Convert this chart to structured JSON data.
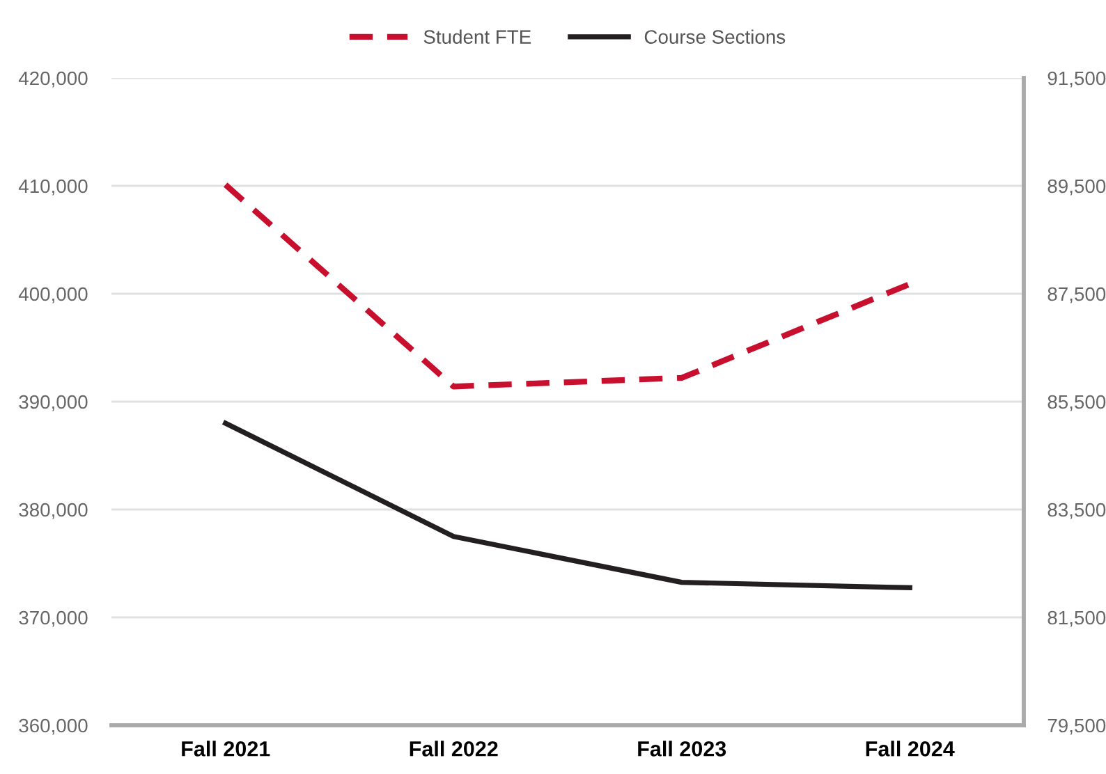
{
  "chart_data": {
    "type": "line",
    "categories": [
      "Fall 2021",
      "Fall 2022",
      "Fall 2023",
      "Fall 2024"
    ],
    "series": [
      {
        "name": "Student FTE",
        "color": "#c8102e",
        "line_style": "dashed",
        "values": [
          410100,
          391400,
          392200,
          400900
        ]
      },
      {
        "name": "Course Sections",
        "color": "#231f20",
        "line_style": "solid",
        "axis": "y2",
        "values": [
          85100,
          83000,
          82150,
          82050
        ]
      }
    ],
    "ylim": [
      360000,
      420000
    ],
    "yticks": [
      {
        "value": 360000,
        "label": "360,000"
      },
      {
        "value": 370000,
        "label": "370,000"
      },
      {
        "value": 380000,
        "label": "380,000"
      },
      {
        "value": 390000,
        "label": "390,000"
      },
      {
        "value": 400000,
        "label": "400,000"
      },
      {
        "value": 410000,
        "label": "410,000"
      },
      {
        "value": 420000,
        "label": "420,000"
      }
    ],
    "y2lim": [
      79500,
      91500
    ],
    "y2ticks": [
      {
        "value": 79500,
        "label": "79,500"
      },
      {
        "value": 81500,
        "label": "81,500"
      },
      {
        "value": 83500,
        "label": "83,500"
      },
      {
        "value": 85500,
        "label": "85,500"
      },
      {
        "value": 87500,
        "label": "87,500"
      },
      {
        "value": 89500,
        "label": "89,500"
      },
      {
        "value": 91500,
        "label": "91,500"
      }
    ],
    "grid": "y",
    "legend": "top",
    "marker": "none"
  }
}
